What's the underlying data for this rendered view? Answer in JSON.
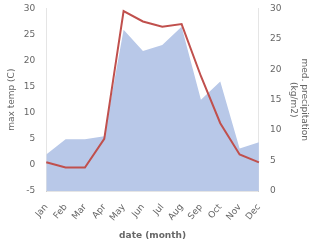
{
  "chart_data": {
    "type": "line",
    "categories": [
      "Jan",
      "Feb",
      "Mar",
      "Apr",
      "May",
      "Jun",
      "Jul",
      "Aug",
      "Sep",
      "Oct",
      "Nov",
      "Dec"
    ],
    "series": [
      {
        "type": "area",
        "color": "#b8c8e8",
        "axis": "y2",
        "values": [
          6.0,
          8.5,
          8.5,
          9.0,
          26.5,
          23.0,
          24.0,
          27.0,
          15.0,
          18.0,
          7.0,
          8.0
        ]
      },
      {
        "type": "line",
        "color": "#c0504d",
        "values": [
          0.5,
          -0.5,
          -0.5,
          5.0,
          29.5,
          27.5,
          26.5,
          27.0,
          17.0,
          8.0,
          2.0,
          0.5
        ]
      }
    ],
    "xlabel": "date (month)",
    "ylabel": "max temp (C)",
    "y2label": "med. precipitation\n(kg/m2)",
    "ylim": [
      -5,
      30
    ],
    "yticks": [
      -5,
      0,
      5,
      10,
      15,
      20,
      25,
      30
    ],
    "y2lim": [
      0,
      30
    ],
    "y2ticks": [
      0,
      5,
      10,
      15,
      20,
      25,
      30
    ],
    "grid": false
  }
}
